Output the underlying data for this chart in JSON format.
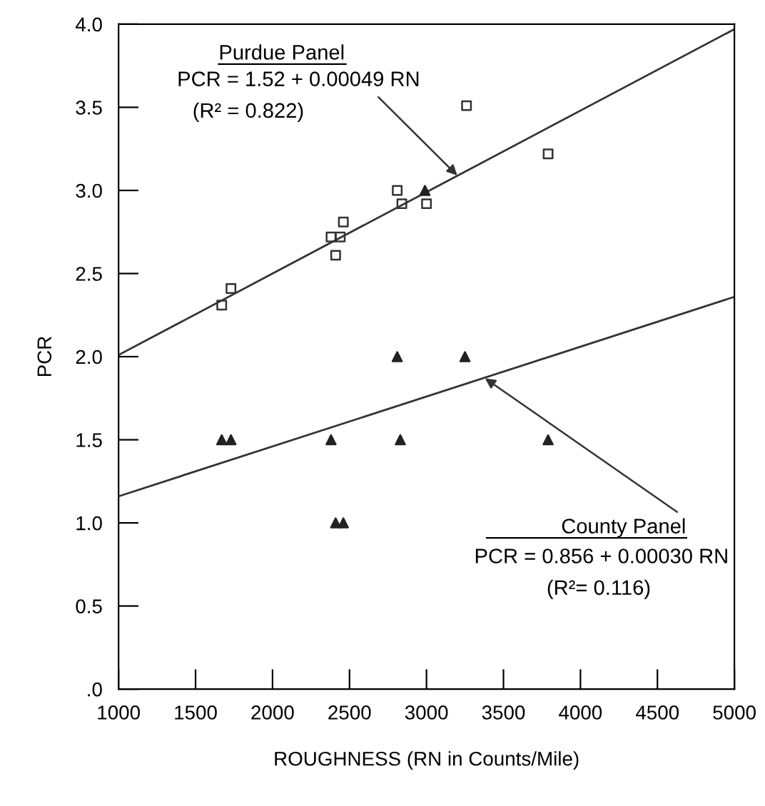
{
  "chart_data": {
    "type": "scatter",
    "xlabel": "ROUGHNESS (RN in Counts/Mile)",
    "ylabel": "PCR",
    "xlim": [
      1000,
      5000
    ],
    "ylim": [
      0,
      4.0
    ],
    "xticks": [
      1000,
      1500,
      2000,
      2500,
      3000,
      3500,
      4000,
      4500,
      5000
    ],
    "yticks": [
      {
        "value": 0,
        "label": ".0"
      },
      {
        "value": 0.5,
        "label": "0.5"
      },
      {
        "value": 1.0,
        "label": "1.0"
      },
      {
        "value": 1.5,
        "label": "1.5"
      },
      {
        "value": 2.0,
        "label": "2.0"
      },
      {
        "value": 2.5,
        "label": "2.5"
      },
      {
        "value": 3.0,
        "label": "3.0"
      },
      {
        "value": 3.5,
        "label": "3.5"
      },
      {
        "value": 4.0,
        "label": "4.0"
      }
    ],
    "grid": false,
    "legend": false,
    "series": [
      {
        "marker": "square",
        "color": "#333333",
        "x": [
          1670,
          1730,
          2380,
          2410,
          2440,
          2460,
          2810,
          2840,
          3000,
          3260,
          3790
        ],
        "values": [
          2.31,
          2.41,
          2.72,
          2.61,
          2.72,
          2.81,
          3.0,
          2.92,
          2.92,
          3.51,
          3.22
        ]
      },
      {
        "marker": "triangle",
        "color": "#222222",
        "x": [
          1670,
          1730,
          2380,
          2410,
          2460,
          2810,
          2830,
          2990,
          3250,
          3790
        ],
        "values": [
          1.5,
          1.5,
          1.5,
          1.0,
          1.0,
          2.0,
          1.5,
          3.0,
          2.0,
          1.5
        ]
      },
      {
        "type": "line",
        "marker": "none",
        "line_style": "solid",
        "color": "#333333",
        "x": [
          1000,
          5000
        ],
        "values": [
          2.01,
          3.97
        ]
      },
      {
        "type": "line",
        "marker": "none",
        "line_style": "solid",
        "color": "#333333",
        "x": [
          1000,
          5000
        ],
        "values": [
          1.16,
          2.36
        ]
      }
    ],
    "annotations": [
      "Purdue Panel",
      {
        "text": "PCR = 1.52 + 0.00049 RN",
        "x": 3200,
        "y": 3.09
      },
      "(R² = 0.822)",
      {
        "text": "County Panel",
        "x": 3380,
        "y": 1.87
      },
      "PCR = 0.856 + 0.00030 RN",
      "(R²= 0.116)"
    ]
  }
}
